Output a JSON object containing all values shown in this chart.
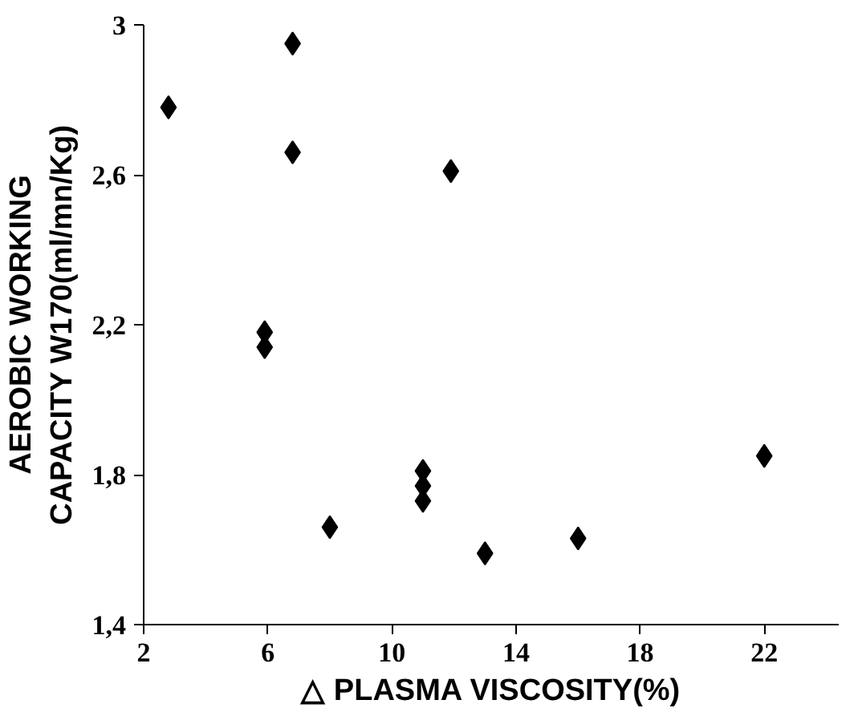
{
  "chart_data": {
    "type": "scatter",
    "xlabel": "△ PLASMA VISCOSITY(%)",
    "ylabel": "AEROBIC WORKING\nCAPACITY W170(ml/mn/Kg)",
    "x": [
      2.8,
      6.8,
      6.8,
      11.9,
      5.9,
      5.9,
      8,
      11,
      11,
      11,
      13,
      16,
      22
    ],
    "values": [
      2.78,
      2.95,
      2.66,
      2.61,
      2.18,
      2.14,
      1.66,
      1.81,
      1.77,
      1.73,
      1.59,
      1.63,
      1.85
    ],
    "color": "#000000",
    "marker": "diamond",
    "grid": false,
    "xlim": [
      2,
      24.4
    ],
    "ylim": [
      1.4,
      3
    ],
    "xticks": [
      {
        "value": 2,
        "label": "2"
      },
      {
        "value": 6,
        "label": "6"
      },
      {
        "value": 10,
        "label": "10"
      },
      {
        "value": 14,
        "label": "14"
      },
      {
        "value": 18,
        "label": "18"
      },
      {
        "value": 22,
        "label": "22"
      }
    ],
    "yticks": [
      {
        "value": 1.4,
        "label": "1,4"
      },
      {
        "value": 1.8,
        "label": "1,8"
      },
      {
        "value": 2.2,
        "label": "2,2"
      },
      {
        "value": 2.6,
        "label": "2,6"
      },
      {
        "value": 3,
        "label": "3"
      }
    ]
  }
}
